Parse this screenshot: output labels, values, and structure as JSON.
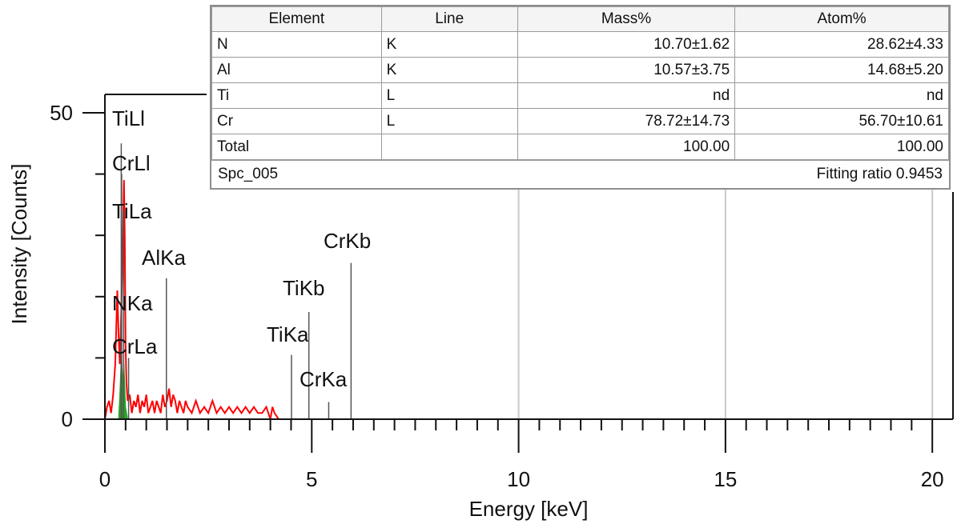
{
  "chart_data": {
    "type": "line",
    "title": "",
    "xlabel": "Energy [keV]",
    "ylabel": "Intensity [Counts]",
    "xlim": [
      0,
      20.5
    ],
    "ylim": [
      0,
      53
    ],
    "x_ticks": [
      0,
      5,
      10,
      15,
      20
    ],
    "x_tick_labels": [
      "0",
      "5",
      "10",
      "15",
      "20"
    ],
    "y_ticks": [
      0,
      50
    ],
    "y_tick_labels": [
      "0",
      "50"
    ],
    "grid_x": [
      10,
      15,
      20
    ],
    "spectrum": {
      "name": "Spc_005",
      "color": "#ff0000",
      "x": [
        0.0,
        0.05,
        0.1,
        0.15,
        0.2,
        0.25,
        0.3,
        0.33,
        0.36,
        0.4,
        0.43,
        0.46,
        0.48,
        0.5,
        0.52,
        0.55,
        0.6,
        0.65,
        0.7,
        0.75,
        0.8,
        0.85,
        0.9,
        0.95,
        1.0,
        1.05,
        1.1,
        1.15,
        1.2,
        1.25,
        1.3,
        1.35,
        1.4,
        1.45,
        1.5,
        1.55,
        1.6,
        1.65,
        1.7,
        1.75,
        1.8,
        1.85,
        1.9,
        1.95,
        2.0,
        2.1,
        2.2,
        2.3,
        2.4,
        2.5,
        2.6,
        2.7,
        2.8,
        2.9,
        3.0,
        3.1,
        3.2,
        3.3,
        3.4,
        3.5,
        3.6,
        3.7,
        3.8,
        3.9,
        4.0,
        4.05,
        4.1,
        4.2,
        20.5
      ],
      "y": [
        0,
        2,
        3,
        1,
        4,
        9,
        21,
        14,
        9,
        19,
        27,
        39,
        30,
        12,
        6,
        3,
        4,
        1,
        3,
        2,
        4,
        1,
        3,
        2,
        4,
        1,
        2,
        3,
        1,
        3,
        2,
        1,
        4,
        2,
        3,
        5,
        2,
        4,
        3,
        1,
        3,
        2,
        1,
        3,
        2,
        1,
        3,
        1,
        2,
        1,
        3,
        1,
        2,
        1,
        2,
        1,
        2,
        1,
        2,
        1,
        2,
        1,
        1,
        2,
        0,
        2,
        1,
        0,
        0
      ]
    },
    "fit_fill": {
      "name": "fit",
      "color": "#22aa22",
      "x": [
        0.33,
        0.36,
        0.4,
        0.43,
        0.46,
        0.5,
        0.55
      ],
      "y": [
        0,
        4,
        11,
        6,
        9,
        2,
        0
      ]
    },
    "markers": [
      {
        "label": "TiLl",
        "energy": 0.395,
        "line_top": 45
      },
      {
        "label": "CrLl",
        "energy": 0.405,
        "line_top": 40
      },
      {
        "label": "TiLa",
        "energy": 0.452,
        "line_top": 34
      },
      {
        "label": "AlKa",
        "energy": 1.486,
        "line_top": 23
      },
      {
        "label": "NKa",
        "energy": 0.392,
        "line_top": 16
      },
      {
        "label": "CrLa",
        "energy": 0.573,
        "line_top": 10
      },
      {
        "label": "TiKa",
        "energy": 4.51,
        "line_top": 10.5
      },
      {
        "label": "TiKb",
        "energy": 4.93,
        "line_top": 17.5
      },
      {
        "label": "CrKa",
        "energy": 5.41,
        "line_top": 2.8
      },
      {
        "label": "CrKb",
        "energy": 5.95,
        "line_top": 25.5
      }
    ]
  },
  "table": {
    "headers": [
      "Element",
      "Line",
      "Mass%",
      "Atom%"
    ],
    "rows": [
      {
        "element": "N",
        "line": "K",
        "mass": "10.70±1.62",
        "atom": "28.62±4.33"
      },
      {
        "element": "Al",
        "line": "K",
        "mass": "10.57±3.75",
        "atom": "14.68±5.20"
      },
      {
        "element": "Ti",
        "line": "L",
        "mass": "nd",
        "atom": "nd"
      },
      {
        "element": "Cr",
        "line": "L",
        "mass": "78.72±14.73",
        "atom": "56.70±10.61"
      },
      {
        "element": "Total",
        "line": "",
        "mass": "100.00",
        "atom": "100.00"
      }
    ],
    "spectrum_name": "Spc_005",
    "fitting_ratio": "Fitting ratio 0.9453"
  }
}
